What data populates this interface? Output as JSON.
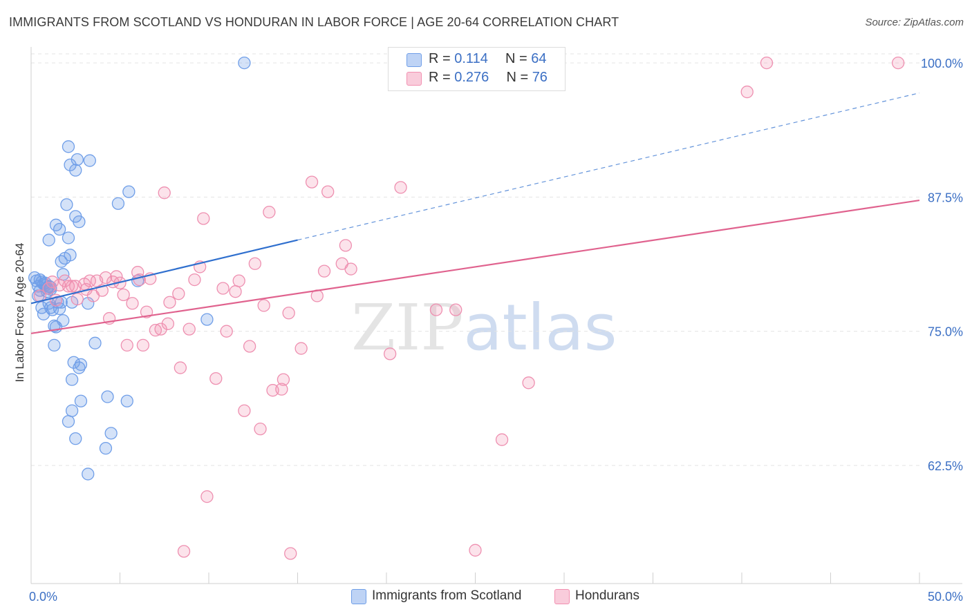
{
  "title": "IMMIGRANTS FROM SCOTLAND VS HONDURAN IN LABOR FORCE | AGE 20-64 CORRELATION CHART",
  "source": "Source: ZipAtlas.com",
  "watermark": "ZIPatlas",
  "legend_top": [
    {
      "r_label": "R = ",
      "r_value": "0.114",
      "n_label": "N = ",
      "n_value": "64"
    },
    {
      "r_label": "R = ",
      "r_value": "0.276",
      "n_label": "N = ",
      "n_value": "76"
    }
  ],
  "colors": {
    "scotland": "#6f9ee8",
    "honduran": "#f28fb0",
    "scotland_line": "#2f6fce",
    "honduran_line": "#e0628e",
    "tick_text": "#3b6fc4"
  },
  "chart_data": {
    "type": "scatter",
    "xlabel": "",
    "ylabel": "In Labor Force | Age 20-64",
    "xlim": [
      0,
      50
    ],
    "ylim": [
      51.5,
      102
    ],
    "x_tick_labels": [
      {
        "value": 0,
        "label": "0.0%"
      },
      {
        "value": 50,
        "label": "50.0%"
      }
    ],
    "y_tick_labels": [
      {
        "value": 100,
        "label": "100.0%"
      },
      {
        "value": 87.5,
        "label": "87.5%"
      },
      {
        "value": 75,
        "label": "75.0%"
      },
      {
        "value": 62.5,
        "label": "62.5%"
      }
    ],
    "grid": true,
    "legend_position": "top-center and bottom",
    "series": [
      {
        "name": "Immigrants from Scotland",
        "points": [
          [
            0.2,
            80.0
          ],
          [
            0.3,
            79.7
          ],
          [
            0.4,
            79.2
          ],
          [
            0.5,
            78.8
          ],
          [
            0.6,
            79.6
          ],
          [
            0.7,
            79.4
          ],
          [
            0.8,
            79.5
          ],
          [
            0.9,
            78.7
          ],
          [
            1.0,
            79.2
          ],
          [
            1.1,
            78.9
          ],
          [
            0.4,
            78.3
          ],
          [
            0.6,
            77.2
          ],
          [
            0.7,
            76.6
          ],
          [
            0.8,
            79.3
          ],
          [
            0.9,
            79.0
          ],
          [
            1.0,
            77.6
          ],
          [
            1.1,
            77.2
          ],
          [
            1.2,
            77.0
          ],
          [
            1.3,
            75.5
          ],
          [
            1.4,
            75.4
          ],
          [
            1.5,
            77.7
          ],
          [
            1.6,
            77.1
          ],
          [
            1.7,
            77.7
          ],
          [
            1.8,
            76.0
          ],
          [
            1.3,
            73.7
          ],
          [
            1.0,
            83.5
          ],
          [
            1.4,
            84.9
          ],
          [
            1.6,
            84.5
          ],
          [
            1.7,
            81.5
          ],
          [
            1.8,
            80.3
          ],
          [
            1.9,
            81.8
          ],
          [
            2.0,
            86.8
          ],
          [
            2.1,
            83.7
          ],
          [
            2.1,
            92.2
          ],
          [
            2.2,
            90.5
          ],
          [
            2.3,
            77.7
          ],
          [
            2.3,
            67.6
          ],
          [
            2.1,
            66.6
          ],
          [
            2.2,
            82.1
          ],
          [
            2.4,
            72.1
          ],
          [
            2.3,
            70.5
          ],
          [
            2.5,
            85.7
          ],
          [
            2.5,
            65.0
          ],
          [
            2.5,
            90.0
          ],
          [
            2.6,
            91.0
          ],
          [
            2.7,
            71.6
          ],
          [
            2.7,
            85.2
          ],
          [
            2.8,
            71.9
          ],
          [
            2.8,
            68.5
          ],
          [
            3.2,
            61.7
          ],
          [
            3.3,
            90.9
          ],
          [
            3.6,
            73.9
          ],
          [
            4.2,
            64.1
          ],
          [
            4.3,
            68.9
          ],
          [
            4.5,
            65.5
          ],
          [
            4.9,
            86.9
          ],
          [
            5.4,
            68.5
          ],
          [
            5.5,
            88.0
          ],
          [
            6.0,
            79.7
          ],
          [
            9.9,
            76.1
          ],
          [
            12.0,
            100.0
          ],
          [
            1.1,
            79.1
          ],
          [
            0.5,
            79.8
          ],
          [
            3.2,
            77.6
          ]
        ]
      },
      {
        "name": "Hondurans",
        "points": [
          [
            0.5,
            78.3
          ],
          [
            1.0,
            79.0
          ],
          [
            1.2,
            79.6
          ],
          [
            1.4,
            77.9
          ],
          [
            1.6,
            79.3
          ],
          [
            1.9,
            79.7
          ],
          [
            2.1,
            79.2
          ],
          [
            2.3,
            79.2
          ],
          [
            2.5,
            79.2
          ],
          [
            2.6,
            78.0
          ],
          [
            3.0,
            79.4
          ],
          [
            3.1,
            78.9
          ],
          [
            3.3,
            79.7
          ],
          [
            3.5,
            78.3
          ],
          [
            3.7,
            79.7
          ],
          [
            4.0,
            78.8
          ],
          [
            4.2,
            80.0
          ],
          [
            4.4,
            76.2
          ],
          [
            4.6,
            79.6
          ],
          [
            4.8,
            80.1
          ],
          [
            5.0,
            79.5
          ],
          [
            5.2,
            78.4
          ],
          [
            5.4,
            73.7
          ],
          [
            5.7,
            77.6
          ],
          [
            6.0,
            80.5
          ],
          [
            6.1,
            79.8
          ],
          [
            6.3,
            73.7
          ],
          [
            6.5,
            76.8
          ],
          [
            6.7,
            79.9
          ],
          [
            7.0,
            75.1
          ],
          [
            7.3,
            75.2
          ],
          [
            7.5,
            87.9
          ],
          [
            7.7,
            75.7
          ],
          [
            7.8,
            77.7
          ],
          [
            8.3,
            78.5
          ],
          [
            8.4,
            71.6
          ],
          [
            8.6,
            54.5
          ],
          [
            8.9,
            75.2
          ],
          [
            9.2,
            79.8
          ],
          [
            9.5,
            81.0
          ],
          [
            9.7,
            85.5
          ],
          [
            9.9,
            59.6
          ],
          [
            10.4,
            70.6
          ],
          [
            10.8,
            79.0
          ],
          [
            11.0,
            75.0
          ],
          [
            11.5,
            78.7
          ],
          [
            11.7,
            79.7
          ],
          [
            12.0,
            67.6
          ],
          [
            12.3,
            73.6
          ],
          [
            12.6,
            81.3
          ],
          [
            12.9,
            65.9
          ],
          [
            13.1,
            77.4
          ],
          [
            13.4,
            86.1
          ],
          [
            13.6,
            69.5
          ],
          [
            14.1,
            69.6
          ],
          [
            14.2,
            70.5
          ],
          [
            14.5,
            76.7
          ],
          [
            14.6,
            54.3
          ],
          [
            15.2,
            73.4
          ],
          [
            16.1,
            78.3
          ],
          [
            15.8,
            88.9
          ],
          [
            16.5,
            80.6
          ],
          [
            16.7,
            88.0
          ],
          [
            17.5,
            81.3
          ],
          [
            17.7,
            83.0
          ],
          [
            18.0,
            80.8
          ],
          [
            20.2,
            72.9
          ],
          [
            20.8,
            88.4
          ],
          [
            22.8,
            77.0
          ],
          [
            23.9,
            77.0
          ],
          [
            25.0,
            54.6
          ],
          [
            26.5,
            64.9
          ],
          [
            28.0,
            70.2
          ],
          [
            41.4,
            100.0
          ],
          [
            40.3,
            97.3
          ],
          [
            48.8,
            100.0
          ]
        ]
      }
    ],
    "trendlines": [
      {
        "name": "Immigrants from Scotland",
        "x0": 0,
        "y0": 77.6,
        "x1": 15,
        "y1": 83.5,
        "extend_dashed_to_x": 50,
        "y_at_50": 97.2
      },
      {
        "name": "Hondurans",
        "x0": 0,
        "y0": 74.8,
        "x1": 50,
        "y1": 87.2
      }
    ]
  },
  "bottom_legend": [
    "Immigrants from Scotland",
    "Hondurans"
  ]
}
